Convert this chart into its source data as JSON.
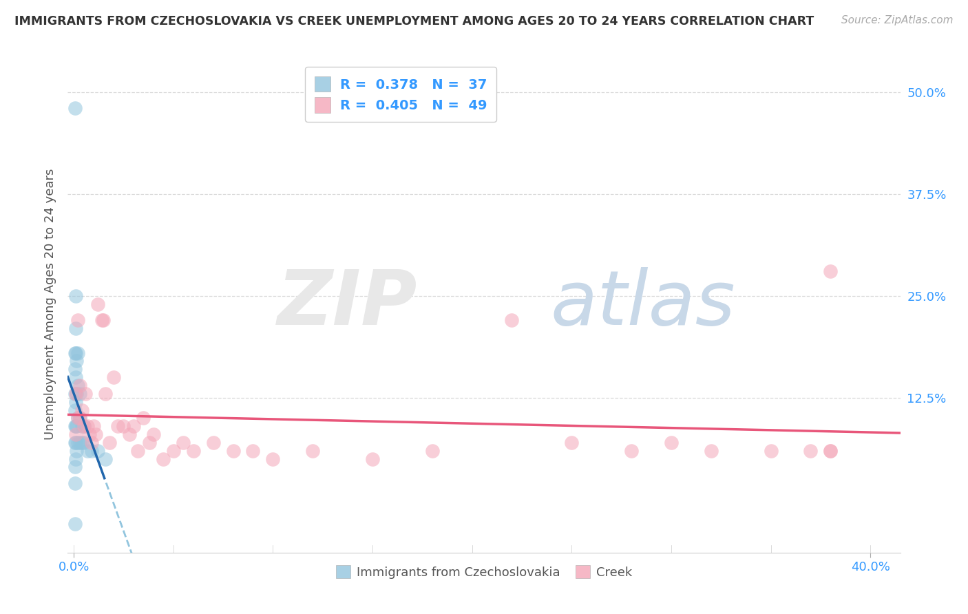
{
  "title": "IMMIGRANTS FROM CZECHOSLOVAKIA VS CREEK UNEMPLOYMENT AMONG AGES 20 TO 24 YEARS CORRELATION CHART",
  "source": "Source: ZipAtlas.com",
  "ylabel": "Unemployment Among Ages 20 to 24 years",
  "legend1_label": "Immigrants from Czechoslovakia",
  "legend2_label": "Creek",
  "r1": "0.378",
  "n1": "37",
  "r2": "0.405",
  "n2": "49",
  "blue_color": "#92c5de",
  "blue_line_color": "#2166ac",
  "blue_dash_color": "#92c5de",
  "pink_color": "#f4a6b8",
  "pink_line_color": "#e8567a",
  "ytick_vals": [
    0.125,
    0.25,
    0.375,
    0.5
  ],
  "ytick_labels": [
    "12.5%",
    "25.0%",
    "37.5%",
    "50.0%"
  ],
  "xtick_vals": [
    0.0,
    0.4
  ],
  "xtick_labels": [
    "0.0%",
    "40.0%"
  ],
  "xmin": -0.003,
  "xmax": 0.415,
  "ymin": -0.065,
  "ymax": 0.545,
  "blue_scatter_x": [
    0.0005,
    0.0005,
    0.0005,
    0.0005,
    0.0005,
    0.0005,
    0.0005,
    0.0005,
    0.001,
    0.001,
    0.001,
    0.001,
    0.001,
    0.001,
    0.001,
    0.001,
    0.0015,
    0.0015,
    0.0015,
    0.0015,
    0.002,
    0.002,
    0.002,
    0.002,
    0.003,
    0.003,
    0.003,
    0.004,
    0.004,
    0.005,
    0.005,
    0.007,
    0.009,
    0.012,
    0.016,
    0.0005,
    0.0005
  ],
  "blue_scatter_y": [
    0.02,
    0.04,
    0.07,
    0.09,
    0.11,
    0.13,
    0.16,
    0.18,
    0.05,
    0.07,
    0.09,
    0.12,
    0.15,
    0.18,
    0.21,
    0.25,
    0.06,
    0.09,
    0.13,
    0.17,
    0.07,
    0.1,
    0.14,
    0.18,
    0.07,
    0.1,
    0.13,
    0.07,
    0.09,
    0.07,
    0.09,
    0.06,
    0.06,
    0.06,
    0.05,
    0.48,
    -0.03
  ],
  "pink_scatter_x": [
    0.001,
    0.001,
    0.002,
    0.002,
    0.003,
    0.003,
    0.004,
    0.005,
    0.006,
    0.007,
    0.008,
    0.009,
    0.01,
    0.011,
    0.012,
    0.014,
    0.015,
    0.016,
    0.018,
    0.02,
    0.022,
    0.025,
    0.028,
    0.03,
    0.032,
    0.035,
    0.038,
    0.04,
    0.045,
    0.05,
    0.055,
    0.06,
    0.07,
    0.08,
    0.09,
    0.1,
    0.12,
    0.15,
    0.18,
    0.22,
    0.25,
    0.28,
    0.3,
    0.32,
    0.35,
    0.37,
    0.38,
    0.38,
    0.38
  ],
  "pink_scatter_y": [
    0.08,
    0.13,
    0.1,
    0.22,
    0.1,
    0.14,
    0.11,
    0.09,
    0.13,
    0.09,
    0.08,
    0.07,
    0.09,
    0.08,
    0.24,
    0.22,
    0.22,
    0.13,
    0.07,
    0.15,
    0.09,
    0.09,
    0.08,
    0.09,
    0.06,
    0.1,
    0.07,
    0.08,
    0.05,
    0.06,
    0.07,
    0.06,
    0.07,
    0.06,
    0.06,
    0.05,
    0.06,
    0.05,
    0.06,
    0.22,
    0.07,
    0.06,
    0.07,
    0.06,
    0.06,
    0.06,
    0.06,
    0.06,
    0.28
  ],
  "grid_color": "#d9d9d9",
  "grid_style": "--"
}
